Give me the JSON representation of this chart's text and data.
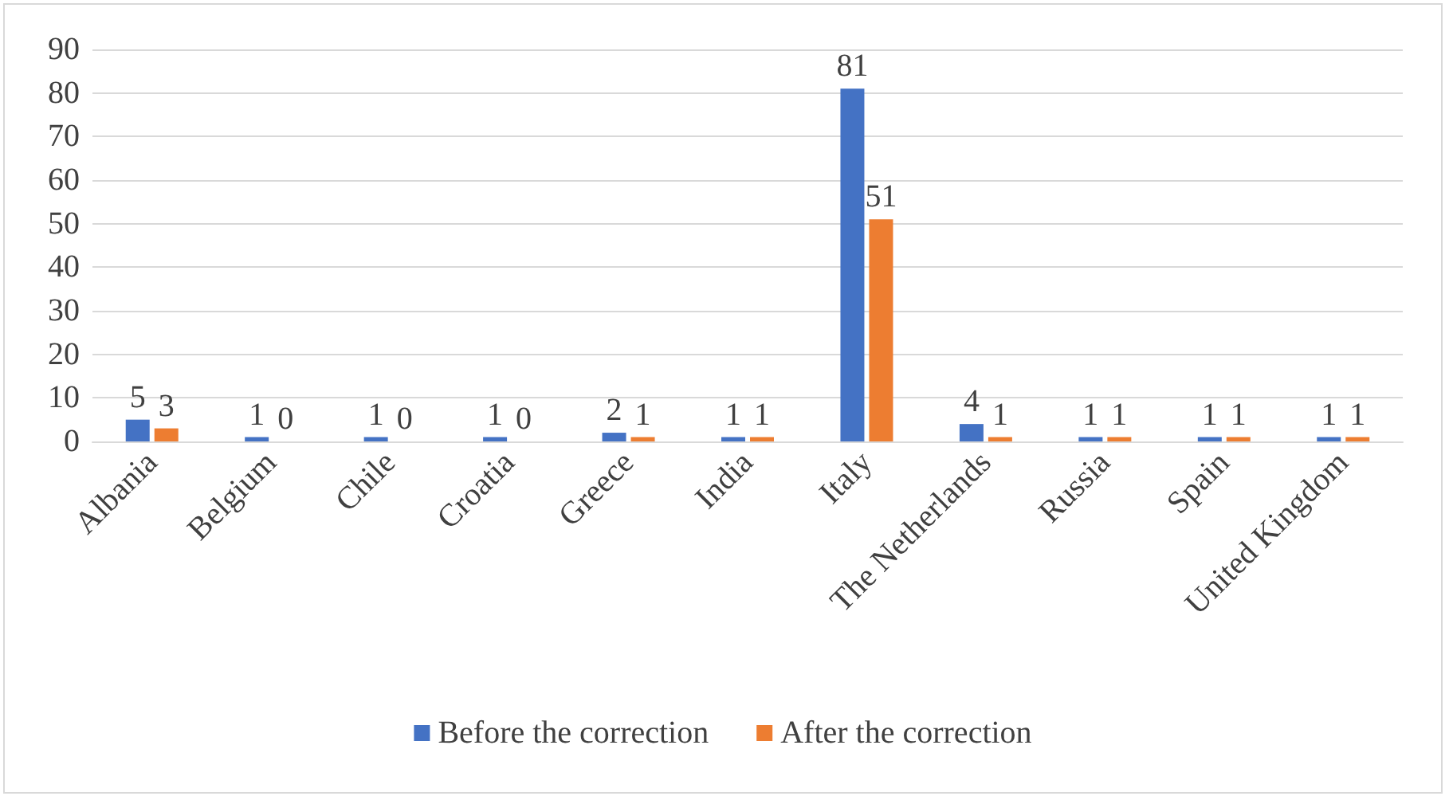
{
  "chart_data": {
    "type": "bar",
    "categories": [
      "Albania",
      "Belgium",
      "Chile",
      "Croatia",
      "Greece",
      "India",
      "Italy",
      "The Netherlands",
      "Russia",
      "Spain",
      "United Kingdom"
    ],
    "series": [
      {
        "name": "Before the correction",
        "color": "#4472c4",
        "values": [
          5,
          1,
          1,
          1,
          2,
          1,
          81,
          4,
          1,
          1,
          1
        ]
      },
      {
        "name": "After the correction",
        "color": "#ed7d31",
        "values": [
          3,
          0,
          0,
          0,
          1,
          1,
          51,
          1,
          1,
          1,
          1
        ]
      }
    ],
    "ylim": [
      0,
      90
    ],
    "yticks": [
      0,
      10,
      20,
      30,
      40,
      50,
      60,
      70,
      80,
      90
    ],
    "grid": "y",
    "legend": "bottom",
    "data_labels": true
  }
}
